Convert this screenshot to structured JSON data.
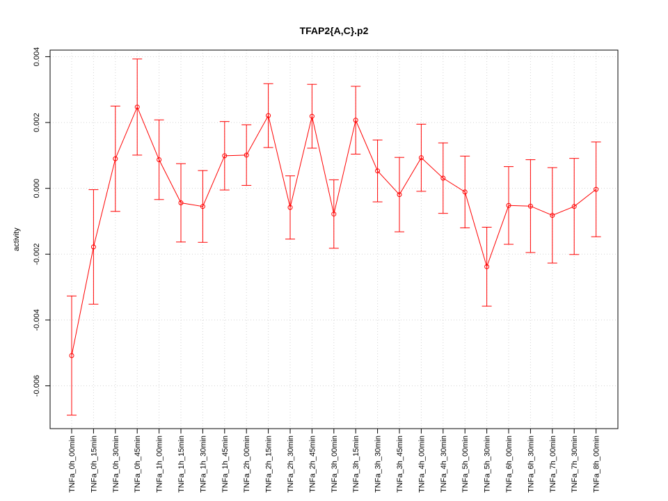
{
  "chart_data": {
    "type": "line",
    "title": "TFAP2{A,C}.p2",
    "xlabel": "",
    "ylabel": "activity",
    "grid": true,
    "ylim": [
      -0.0073,
      0.0042
    ],
    "yticks": [
      -0.006,
      -0.004,
      -0.002,
      0.0,
      0.002,
      0.004
    ],
    "ytick_labels": [
      "-0.006",
      "-0.004",
      "-0.002",
      "0.000",
      "0.002",
      "0.004"
    ],
    "categories": [
      "TNFa_0h_00min",
      "TNFa_0h_15min",
      "TNFa_0h_30min",
      "TNFa_0h_45min",
      "TNFa_1h_00min",
      "TNFa_1h_15min",
      "TNFa_1h_30min",
      "TNFa_1h_45min",
      "TNFa_2h_00min",
      "TNFa_2h_15min",
      "TNFa_2h_30min",
      "TNFa_2h_45min",
      "TNFa_3h_00min",
      "TNFa_3h_15min",
      "TNFa_3h_30min",
      "TNFa_3h_45min",
      "TNFa_4h_00min",
      "TNFa_4h_30min",
      "TNFa_5h_00min",
      "TNFa_5h_30min",
      "TNFa_6h_00min",
      "TNFa_6h_30min",
      "TNFa_7h_00min",
      "TNFa_7h_30min",
      "TNFa_8h_00min"
    ],
    "series": [
      {
        "color": "#ff0000",
        "values": [
          -0.00508,
          -0.00178,
          0.0009,
          0.00247,
          0.00087,
          -0.00044,
          -0.00055,
          0.00099,
          0.00101,
          0.00221,
          -0.00058,
          0.00219,
          -0.00078,
          0.00207,
          0.00053,
          -0.00019,
          0.00093,
          0.00031,
          -0.00011,
          -0.00238,
          -0.00052,
          -0.00054,
          -0.00082,
          -0.00055,
          -3e-05
        ],
        "upper": [
          -0.00327,
          -4e-05,
          0.0025,
          0.00393,
          0.00208,
          0.00075,
          0.00054,
          0.00203,
          0.00193,
          0.00318,
          0.00038,
          0.00316,
          0.00026,
          0.0031,
          0.00147,
          0.00094,
          0.00195,
          0.00138,
          0.00098,
          -0.00118,
          0.00066,
          0.00087,
          0.00063,
          0.00091,
          0.00141
        ],
        "lower": [
          -0.00689,
          -0.00352,
          -0.0007,
          0.00101,
          -0.00034,
          -0.00163,
          -0.00164,
          -5e-05,
          9e-05,
          0.00124,
          -0.00154,
          0.00122,
          -0.00182,
          0.00104,
          -0.00041,
          -0.00132,
          -9e-05,
          -0.00076,
          -0.0012,
          -0.00358,
          -0.0017,
          -0.00195,
          -0.00227,
          -0.00201,
          -0.00147
        ]
      }
    ]
  }
}
